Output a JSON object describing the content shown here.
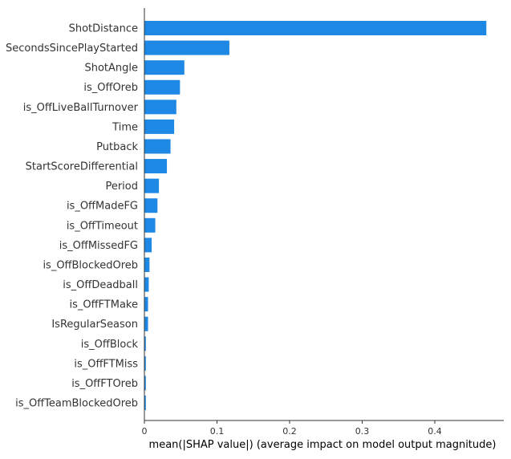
{
  "chart_data": {
    "type": "bar",
    "orientation": "horizontal",
    "title": "",
    "xlabel": "mean(|SHAP value|) (average impact on model output magnitude)",
    "ylabel": "",
    "categories": [
      "ShotDistance",
      "SecondsSincePlayStarted",
      "ShotAngle",
      "is_OffOreb",
      "is_OffLiveBallTurnover",
      "Time",
      "Putback",
      "StartScoreDifferential",
      "Period",
      "is_OffMadeFG",
      "is_OffTimeout",
      "is_OffMissedFG",
      "is_OffBlockedOreb",
      "is_OffDeadball",
      "is_OffFTMake",
      "IsRegularSeason",
      "is_OffBlock",
      "is_OffFTMiss",
      "is_OffFTOreb",
      "is_OffTeamBlockedOreb"
    ],
    "values": [
      0.471,
      0.117,
      0.055,
      0.049,
      0.044,
      0.041,
      0.036,
      0.031,
      0.02,
      0.018,
      0.015,
      0.01,
      0.007,
      0.006,
      0.005,
      0.005,
      0.002,
      0.002,
      0.002,
      0.002
    ],
    "xlim": [
      0,
      0.495
    ],
    "x_ticks": [
      0,
      0.1,
      0.2,
      0.3,
      0.4
    ],
    "x_tick_labels": [
      "0",
      "0.1",
      "0.2",
      "0.3",
      "0.4"
    ],
    "grid": false,
    "legend": "none",
    "bar_color": "#1e88e5"
  }
}
